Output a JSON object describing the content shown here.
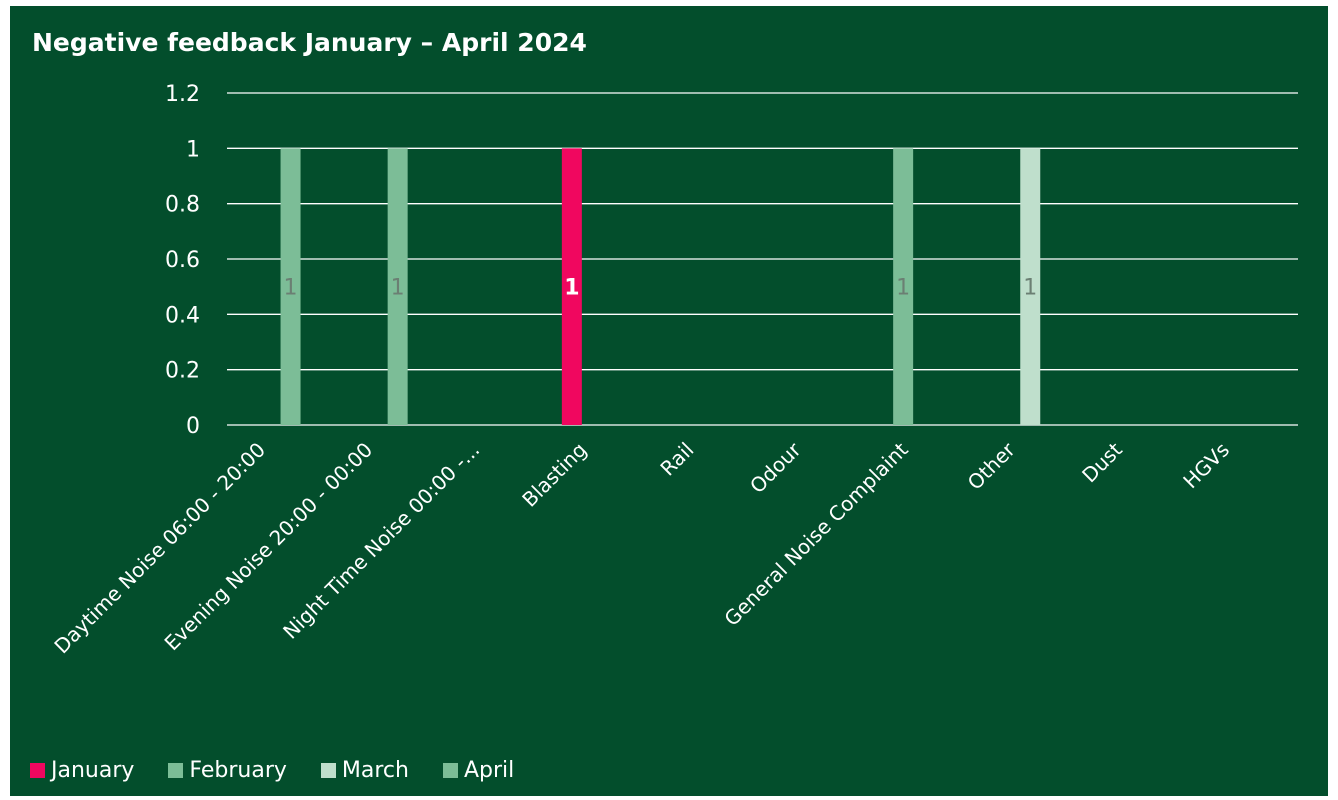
{
  "chart_data": {
    "type": "bar",
    "title": "Negative feedback January – April 2024",
    "xlabel": "",
    "ylabel": "",
    "ylim": [
      0,
      1.2
    ],
    "y_ticks": [
      "0",
      "0.2",
      "0.4",
      "0.6",
      "0.8",
      "1",
      "1.2"
    ],
    "grid": true,
    "legend_position": "bottom-left",
    "categories": [
      "Daytime Noise 06:00 - 20:00",
      "Evening Noise 20:00 - 00:00",
      "Night Time Noise 00:00 -...",
      "Blasting",
      "Rail",
      "Odour",
      "General Noise Complaint",
      "Other",
      "Dust",
      "HGVs"
    ],
    "series": [
      {
        "name": "January",
        "color": "#f0075f",
        "values": [
          0,
          0,
          0,
          1,
          0,
          0,
          0,
          0,
          0,
          0
        ]
      },
      {
        "name": "February",
        "color": "#7cbd97",
        "values": [
          0,
          0,
          0,
          0,
          0,
          0,
          1,
          0,
          0,
          0
        ]
      },
      {
        "name": "March",
        "color": "#bfdfcc",
        "values": [
          0,
          0,
          0,
          0,
          0,
          0,
          0,
          1,
          0,
          0
        ]
      },
      {
        "name": "April",
        "color": "#7cbd97",
        "values": [
          1,
          1,
          0,
          0,
          0,
          0,
          0,
          0,
          0,
          0
        ]
      }
    ],
    "data_labels": [
      {
        "series": "April",
        "category": "Daytime Noise 06:00 - 20:00",
        "text": "1"
      },
      {
        "series": "April",
        "category": "Evening Noise 20:00 - 00:00",
        "text": "1"
      },
      {
        "series": "January",
        "category": "Blasting",
        "text": "1"
      },
      {
        "series": "February",
        "category": "General Noise Complaint",
        "text": "1"
      },
      {
        "series": "March",
        "category": "Other",
        "text": "1"
      }
    ]
  },
  "colors": {
    "background": "#034e2c",
    "gridline": "#ffffff",
    "text": "#ffffff",
    "label_on_light_bar": "#6b7f73",
    "label_on_dark_bar": "#ffffff"
  }
}
